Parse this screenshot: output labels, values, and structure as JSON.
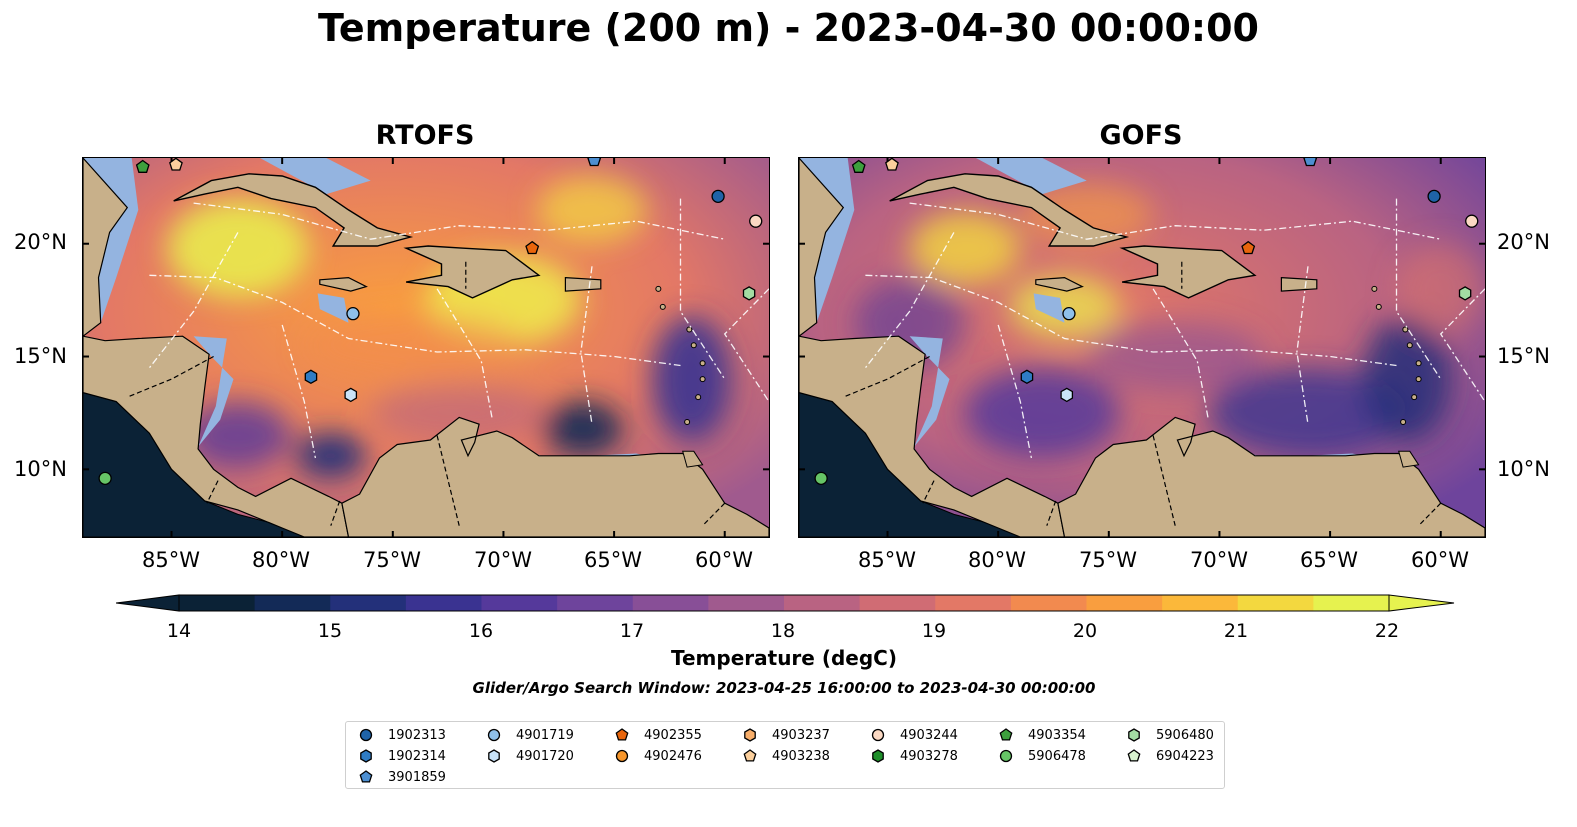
{
  "title": "Temperature (200 m) - 2023-04-30 00:00:00",
  "panels": [
    {
      "title": "RTOFS"
    },
    {
      "title": "GOFS"
    }
  ],
  "map": {
    "lon_range": [
      -89,
      -58
    ],
    "lat_range": [
      7,
      23.8
    ],
    "lon_ticks": [
      "85°W",
      "80°W",
      "75°W",
      "70°W",
      "65°W",
      "60°W"
    ],
    "lat_ticks": [
      "20°N",
      "15°N",
      "10°N"
    ],
    "land_color": "#c8b08a",
    "shelf_color": "#94b4e0",
    "deep_pacific_color": "#0b2236"
  },
  "colorbar": {
    "title": "Temperature (degC)",
    "ticks": [
      "14",
      "15",
      "16",
      "17",
      "18",
      "19",
      "20",
      "21",
      "22"
    ],
    "range": [
      14,
      22
    ],
    "colors": [
      "#0b2236",
      "#132a57",
      "#23307a",
      "#3a3391",
      "#55399b",
      "#6e449c",
      "#884f97",
      "#a05a8e",
      "#b96382",
      "#d06c74",
      "#e37866",
      "#f28a4f",
      "#f99e3f",
      "#fbb83a",
      "#f3d83f",
      "#e6f24f"
    ]
  },
  "window_note": "Glider/Argo Search Window: 2023-04-25 16:00:00 to 2023-04-30 00:00:00",
  "floats": [
    {
      "id": "1902313",
      "marker": "circle",
      "color": "#1f63a8",
      "lon": -60.3,
      "lat": 22.1
    },
    {
      "id": "1902314",
      "marker": "hexagon",
      "color": "#2f7cc4",
      "lon": -78.7,
      "lat": 14.1
    },
    {
      "id": "3901859",
      "marker": "pentagon",
      "color": "#4d8fd1",
      "lon": -65.9,
      "lat": 23.7
    },
    {
      "id": "4901719",
      "marker": "circle",
      "color": "#8fc0ea",
      "lon": -76.8,
      "lat": 16.9
    },
    {
      "id": "4901720",
      "marker": "hexagon",
      "color": "#c9e3f8",
      "lon": -76.9,
      "lat": 13.3
    },
    {
      "id": "4902355",
      "marker": "pentagon",
      "color": "#e8650c",
      "lon": -68.7,
      "lat": 19.8
    },
    {
      "id": "4902476",
      "marker": "circle",
      "color": "#f7962b",
      "lon": null,
      "lat": null
    },
    {
      "id": "4903237",
      "marker": "hexagon",
      "color": "#f8ae6a",
      "lon": null,
      "lat": null
    },
    {
      "id": "4903238",
      "marker": "pentagon",
      "color": "#fbcf9c",
      "lon": -84.8,
      "lat": 23.5
    },
    {
      "id": "4903244",
      "marker": "circle",
      "color": "#fbd9c3",
      "lon": -58.6,
      "lat": 21.0
    },
    {
      "id": "4903278",
      "marker": "hexagon",
      "color": "#1f8f2a",
      "lon": null,
      "lat": null
    },
    {
      "id": "4903354",
      "marker": "pentagon",
      "color": "#3da03d",
      "lon": -86.3,
      "lat": 23.4
    },
    {
      "id": "5906478",
      "marker": "circle",
      "color": "#66c466",
      "lon": -88.0,
      "lat": 9.6
    },
    {
      "id": "5906480",
      "marker": "hexagon",
      "color": "#a3dca3",
      "lon": -58.9,
      "lat": 17.8
    },
    {
      "id": "6904223",
      "marker": "pentagon",
      "color": "#d9f2cf",
      "lon": null,
      "lat": null
    }
  ]
}
